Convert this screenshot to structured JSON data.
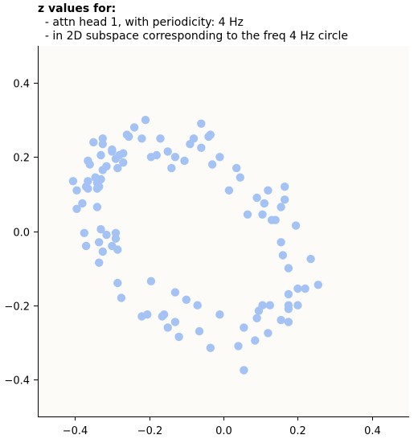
{
  "title": {
    "main": "z values for:",
    "line1": "  - attn head 1, with periodicity: 4 Hz",
    "line2": "  - in 2D subspace corresponding to the freq 4 Hz circle"
  },
  "colors": {
    "point": "#a4c2f4",
    "plot_bg": "#fcfbf8",
    "axis": "#000000"
  },
  "chart_data": {
    "type": "scatter",
    "title": "z values for:",
    "subtitle": [
      "- attn head 1, with periodicity: 4 Hz",
      "- in 2D subspace corresponding to the freq 4 Hz circle"
    ],
    "xlabel": "",
    "ylabel": "",
    "xlim": [
      -0.5,
      0.5
    ],
    "ylim": [
      -0.5,
      0.5
    ],
    "xticks": [
      -0.4,
      -0.2,
      0.0,
      0.2,
      0.4
    ],
    "yticks": [
      -0.4,
      -0.2,
      0.0,
      0.2,
      0.4
    ],
    "xtick_labels": [
      "−0.4",
      "−0.2",
      "0.0",
      "0.2",
      "0.4"
    ],
    "ytick_labels": [
      "−0.4",
      "−0.2",
      "0.0",
      "0.2",
      "0.4"
    ],
    "grid": false,
    "points": [
      [
        -0.21,
        0.3
      ],
      [
        -0.24,
        0.28
      ],
      [
        -0.06,
        0.29
      ],
      [
        -0.26,
        0.26
      ],
      [
        -0.255,
        0.255
      ],
      [
        -0.22,
        0.25
      ],
      [
        -0.17,
        0.25
      ],
      [
        -0.08,
        0.25
      ],
      [
        -0.035,
        0.26
      ],
      [
        -0.04,
        0.255
      ],
      [
        -0.325,
        0.25
      ],
      [
        -0.35,
        0.24
      ],
      [
        -0.09,
        0.235
      ],
      [
        -0.06,
        0.225
      ],
      [
        -0.325,
        0.235
      ],
      [
        -0.3,
        0.22
      ],
      [
        -0.3,
        0.215
      ],
      [
        -0.27,
        0.21
      ],
      [
        -0.28,
        0.205
      ],
      [
        -0.33,
        0.205
      ],
      [
        -0.18,
        0.205
      ],
      [
        -0.15,
        0.215
      ],
      [
        -0.29,
        0.195
      ],
      [
        -0.13,
        0.2
      ],
      [
        -0.195,
        0.2
      ],
      [
        -0.01,
        0.2
      ],
      [
        -0.365,
        0.19
      ],
      [
        -0.36,
        0.18
      ],
      [
        -0.27,
        0.185
      ],
      [
        -0.105,
        0.19
      ],
      [
        -0.03,
        0.18
      ],
      [
        -0.315,
        0.175
      ],
      [
        -0.325,
        0.165
      ],
      [
        -0.285,
        0.17
      ],
      [
        -0.14,
        0.17
      ],
      [
        0.035,
        0.17
      ],
      [
        -0.345,
        0.145
      ],
      [
        -0.33,
        0.14
      ],
      [
        -0.34,
        0.13
      ],
      [
        -0.365,
        0.135
      ],
      [
        0.045,
        0.145
      ],
      [
        -0.405,
        0.135
      ],
      [
        -0.37,
        0.12
      ],
      [
        -0.365,
        0.115
      ],
      [
        -0.34,
        0.115
      ],
      [
        -0.335,
        0.12
      ],
      [
        -0.395,
        0.11
      ],
      [
        0.015,
        0.11
      ],
      [
        0.12,
        0.11
      ],
      [
        0.165,
        0.12
      ],
      [
        0.09,
        0.09
      ],
      [
        0.165,
        0.085
      ],
      [
        -0.38,
        0.075
      ],
      [
        0.11,
        0.075
      ],
      [
        0.155,
        0.065
      ],
      [
        -0.395,
        0.06
      ],
      [
        -0.34,
        0.065
      ],
      [
        0.065,
        0.045
      ],
      [
        0.105,
        0.045
      ],
      [
        0.13,
        0.03
      ],
      [
        0.14,
        0.03
      ],
      [
        0.195,
        0.015
      ],
      [
        -0.33,
        0.005
      ],
      [
        -0.375,
        -0.005
      ],
      [
        -0.29,
        -0.005
      ],
      [
        -0.315,
        -0.01
      ],
      [
        -0.29,
        -0.02
      ],
      [
        0.155,
        -0.03
      ],
      [
        -0.335,
        -0.03
      ],
      [
        -0.37,
        -0.04
      ],
      [
        -0.3,
        -0.04
      ],
      [
        -0.285,
        -0.05
      ],
      [
        -0.325,
        -0.055
      ],
      [
        0.16,
        -0.065
      ],
      [
        0.235,
        -0.075
      ],
      [
        -0.335,
        -0.085
      ],
      [
        0.175,
        -0.1
      ],
      [
        -0.195,
        -0.135
      ],
      [
        -0.285,
        -0.14
      ],
      [
        0.255,
        -0.145
      ],
      [
        0.22,
        -0.155
      ],
      [
        0.2,
        -0.155
      ],
      [
        -0.13,
        -0.165
      ],
      [
        0.175,
        -0.17
      ],
      [
        -0.275,
        -0.18
      ],
      [
        -0.1,
        -0.185
      ],
      [
        -0.07,
        -0.2
      ],
      [
        0.105,
        -0.2
      ],
      [
        0.125,
        -0.2
      ],
      [
        0.175,
        -0.2
      ],
      [
        0.2,
        -0.2
      ],
      [
        0.175,
        -0.21
      ],
      [
        0.095,
        -0.215
      ],
      [
        -0.205,
        -0.225
      ],
      [
        -0.22,
        -0.23
      ],
      [
        -0.16,
        -0.225
      ],
      [
        -0.165,
        -0.23
      ],
      [
        -0.01,
        -0.225
      ],
      [
        0.09,
        -0.235
      ],
      [
        0.155,
        -0.24
      ],
      [
        0.175,
        -0.245
      ],
      [
        -0.13,
        -0.245
      ],
      [
        -0.15,
        -0.26
      ],
      [
        0.055,
        -0.26
      ],
      [
        -0.065,
        -0.27
      ],
      [
        0.12,
        -0.275
      ],
      [
        -0.12,
        -0.285
      ],
      [
        0.085,
        -0.295
      ],
      [
        0.04,
        -0.31
      ],
      [
        -0.035,
        -0.315
      ],
      [
        0.055,
        -0.375
      ]
    ]
  }
}
